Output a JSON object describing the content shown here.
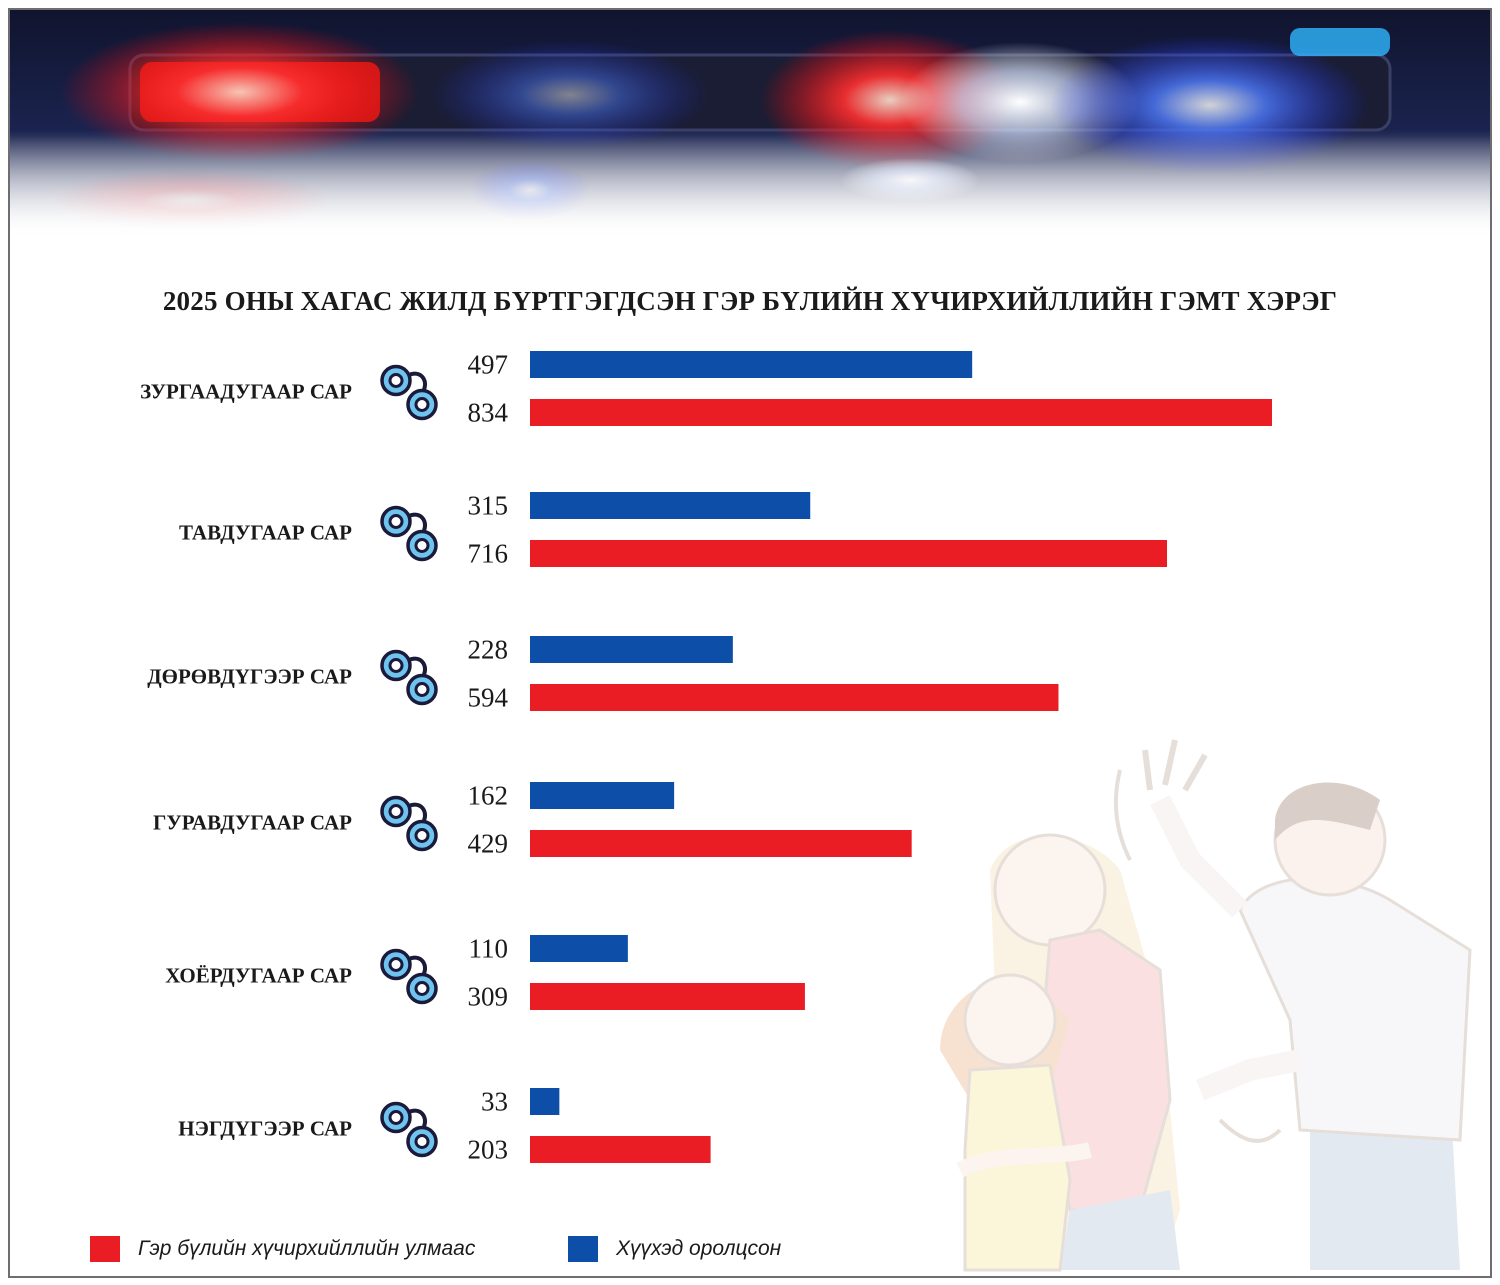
{
  "chart_data": {
    "type": "bar",
    "orientation": "horizontal",
    "title": "2025 ОНЫ ХАГАС ЖИЛД БҮРТГЭГДСЭН ГЭР БҮЛИЙН ХҮЧИРХИЙЛЛИЙН ГЭМТ ХЭРЭГ",
    "categories": [
      "ЗУРГААДУГААР САР",
      "ТАВДУГААР САР",
      "ДӨРӨВДҮГЭЭР САР",
      "ГУРАВДУГААР САР",
      "ХОЁРДУГААР САР",
      "НЭГДҮГЭЭР САР"
    ],
    "series": [
      {
        "name": "Хүүхэд оролцсон",
        "color": "#0d4fa8",
        "values": [
          497,
          315,
          228,
          162,
          110,
          33
        ]
      },
      {
        "name": "Гэр бүлийн хүчирхийллийн улмаас",
        "color": "#ea1c24",
        "values": [
          834,
          716,
          594,
          429,
          309,
          203
        ]
      }
    ],
    "legend": [
      {
        "label": "Гэр бүлийн хүчирхийллийн улмаас",
        "color": "#ea1c24"
      },
      {
        "label": "Хүүхэд оролцсон",
        "color": "#0d4fa8"
      }
    ],
    "legend_position": "bottom-left",
    "xlim": [
      0,
      834
    ],
    "grid": false
  },
  "icons": {
    "row_icon": "handcuffs-icon"
  },
  "colors": {
    "blue": "#0d4fa8",
    "red": "#ea1c24"
  }
}
